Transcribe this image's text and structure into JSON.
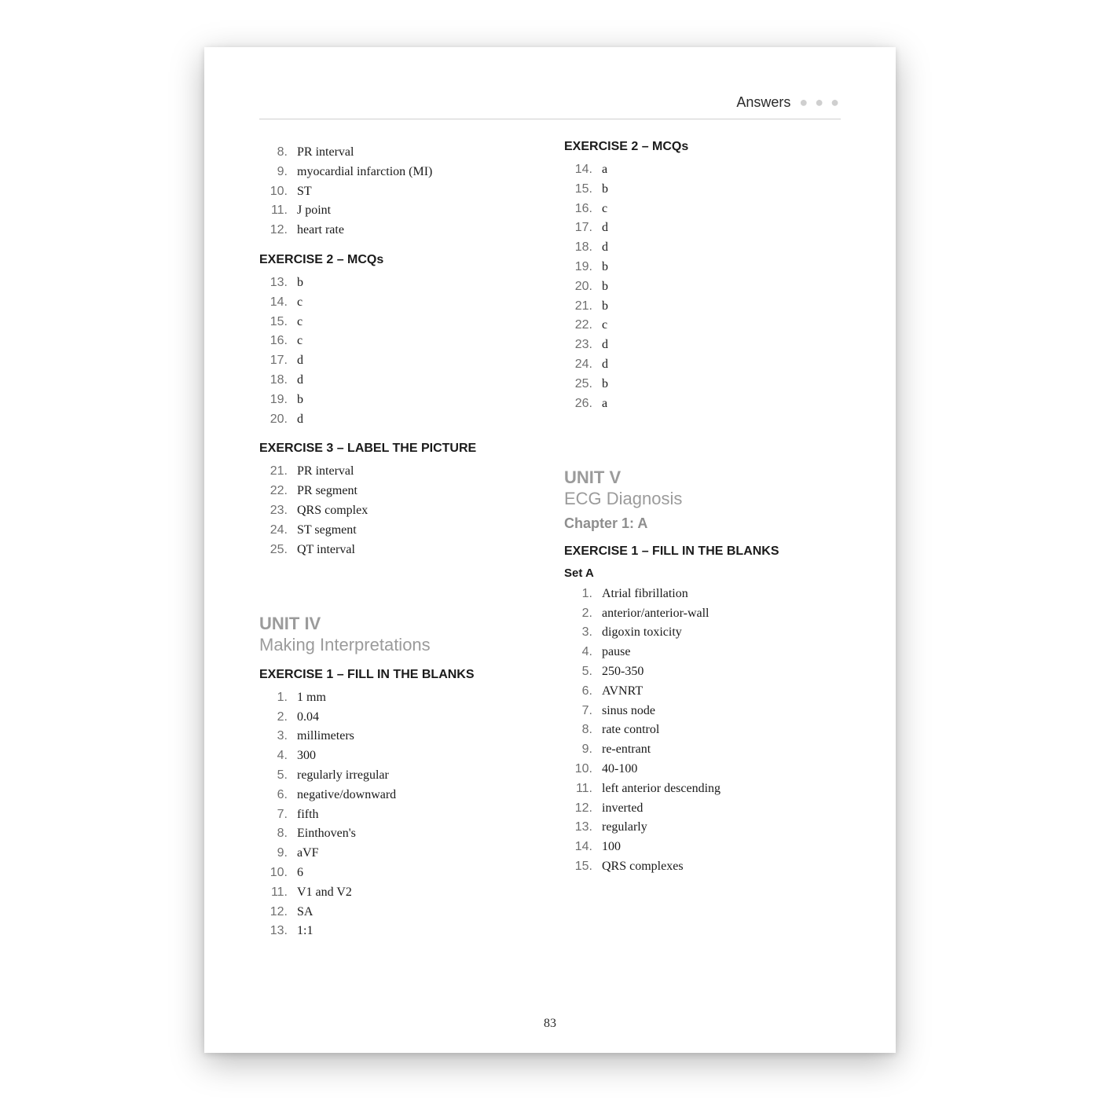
{
  "header": {
    "label": "Answers"
  },
  "page_number": "83",
  "left": {
    "top_list": [
      {
        "n": "8.",
        "v": "PR interval"
      },
      {
        "n": "9.",
        "v": "myocardial infarction (MI)"
      },
      {
        "n": "10.",
        "v": "ST"
      },
      {
        "n": "11.",
        "v": "J point"
      },
      {
        "n": "12.",
        "v": "heart rate"
      }
    ],
    "ex2_title": "EXERCISE 2 – MCQs",
    "ex2_list": [
      {
        "n": "13.",
        "v": "b"
      },
      {
        "n": "14.",
        "v": "c"
      },
      {
        "n": "15.",
        "v": "c"
      },
      {
        "n": "16.",
        "v": "c"
      },
      {
        "n": "17.",
        "v": "d"
      },
      {
        "n": "18.",
        "v": "d"
      },
      {
        "n": "19.",
        "v": "b"
      },
      {
        "n": "20.",
        "v": "d"
      }
    ],
    "ex3_title": "EXERCISE 3 – LABEL THE PICTURE",
    "ex3_list": [
      {
        "n": "21.",
        "v": "PR interval"
      },
      {
        "n": "22.",
        "v": "PR segment"
      },
      {
        "n": "23.",
        "v": "QRS complex"
      },
      {
        "n": "24.",
        "v": "ST segment"
      },
      {
        "n": "25.",
        "v": "QT interval"
      }
    ],
    "unit4_title": "UNIT IV",
    "unit4_sub": "Making Interpretations",
    "unit4_ex1_title": "EXERCISE 1 – FILL IN THE BLANKS",
    "unit4_ex1_list": [
      {
        "n": "1.",
        "v": "1 mm"
      },
      {
        "n": "2.",
        "v": "0.04"
      },
      {
        "n": "3.",
        "v": "millimeters"
      },
      {
        "n": "4.",
        "v": "300"
      },
      {
        "n": "5.",
        "v": "regularly irregular"
      },
      {
        "n": "6.",
        "v": "negative/downward"
      },
      {
        "n": "7.",
        "v": "fifth"
      },
      {
        "n": "8.",
        "v": "Einthoven's"
      },
      {
        "n": "9.",
        "v": "aVF"
      },
      {
        "n": "10.",
        "v": "6"
      },
      {
        "n": "11.",
        "v": "V1 and V2"
      },
      {
        "n": "12.",
        "v": "SA"
      },
      {
        "n": "13.",
        "v": "1:1"
      }
    ]
  },
  "right": {
    "ex2_title": "EXERCISE 2 – MCQs",
    "ex2_list": [
      {
        "n": "14.",
        "v": "a"
      },
      {
        "n": "15.",
        "v": "b"
      },
      {
        "n": "16.",
        "v": "c"
      },
      {
        "n": "17.",
        "v": "d"
      },
      {
        "n": "18.",
        "v": "d"
      },
      {
        "n": "19.",
        "v": "b"
      },
      {
        "n": "20.",
        "v": "b"
      },
      {
        "n": "21.",
        "v": "b"
      },
      {
        "n": "22.",
        "v": "c"
      },
      {
        "n": "23.",
        "v": "d"
      },
      {
        "n": "24.",
        "v": "d"
      },
      {
        "n": "25.",
        "v": "b"
      },
      {
        "n": "26.",
        "v": "a"
      }
    ],
    "unit5_title": "UNIT V",
    "unit5_sub": "ECG Diagnosis",
    "chapter": "Chapter 1: A",
    "ex1_title": "EXERCISE 1 – FILL IN THE BLANKS",
    "set_a_label": "Set A",
    "ex1_list": [
      {
        "n": "1.",
        "v": "Atrial fibrillation"
      },
      {
        "n": "2.",
        "v": "anterior/anterior-wall"
      },
      {
        "n": "3.",
        "v": "digoxin toxicity"
      },
      {
        "n": "4.",
        "v": "pause"
      },
      {
        "n": "5.",
        "v": "250-350"
      },
      {
        "n": "6.",
        "v": "AVNRT"
      },
      {
        "n": "7.",
        "v": "sinus node"
      },
      {
        "n": "8.",
        "v": "rate control"
      },
      {
        "n": "9.",
        "v": "re-entrant"
      },
      {
        "n": "10.",
        "v": "40-100"
      },
      {
        "n": "11.",
        "v": "left anterior descending"
      },
      {
        "n": "12.",
        "v": "inverted"
      },
      {
        "n": "13.",
        "v": "regularly"
      },
      {
        "n": "14.",
        "v": "100"
      },
      {
        "n": "15.",
        "v": "QRS complexes"
      }
    ]
  }
}
